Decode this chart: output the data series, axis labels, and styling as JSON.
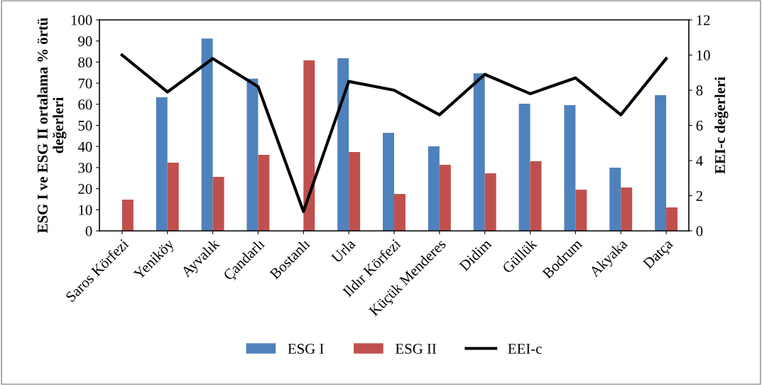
{
  "chart_data": {
    "type": "bar",
    "ylabel": "ESG I ve ESG II ortalama % örtü değerleri",
    "y2label": "EEI-c değerleri",
    "categories": [
      "Saros Körfezi",
      "Yeniköy",
      "Ayvalık",
      "Çandarlı",
      "Bostanlı",
      "Urla",
      "Ildır Körfezi",
      "Küçük Menderes",
      "Didim",
      "Güllük",
      "Bodrum",
      "Akyaka",
      "Datça"
    ],
    "series": [
      {
        "name": "ESG I",
        "color": "#4f81bd",
        "values": [
          null,
          63.3,
          91.2,
          72.1,
          null,
          81.8,
          46.5,
          40.1,
          74.7,
          60.3,
          59.6,
          30.0,
          64.3
        ]
      },
      {
        "name": "ESG II",
        "color": "#c0504d",
        "values": [
          14.8,
          32.3,
          25.6,
          36.0,
          80.8,
          37.4,
          17.5,
          31.3,
          27.3,
          33.0,
          19.5,
          20.5,
          11.1
        ]
      },
      {
        "name": "EEI-c",
        "type": "line",
        "axis": "y2",
        "color": "#000000",
        "values": [
          10.0,
          7.9,
          9.8,
          8.2,
          1.1,
          8.5,
          8.0,
          6.6,
          8.9,
          7.8,
          8.7,
          6.6,
          9.8
        ]
      }
    ],
    "ylim": [
      0,
      100
    ],
    "yticks": [
      0,
      10,
      20,
      30,
      40,
      50,
      60,
      70,
      80,
      90,
      100
    ],
    "y2lim": [
      0,
      12
    ],
    "y2ticks": [
      0,
      2,
      4,
      6,
      8,
      10,
      12
    ],
    "grid": false,
    "legend": "bottom",
    "marker": "none",
    "line_style": "solid"
  }
}
